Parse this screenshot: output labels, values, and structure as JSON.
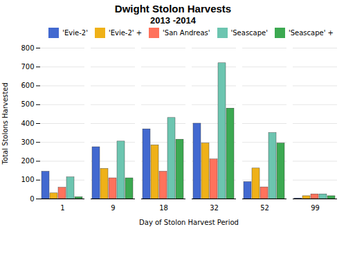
{
  "chart_data": {
    "type": "bar",
    "title": "Dwight Stolon Harvests",
    "subtitle": "2013 -2014",
    "xlabel": "Day of Stolon Harvest Period",
    "ylabel": "Total Stolons Harvested",
    "categories": [
      "1",
      "9",
      "18",
      "32",
      "52",
      "99"
    ],
    "series": [
      {
        "name": "'Evie-2'",
        "values": [
          145,
          275,
          370,
          400,
          90,
          3
        ]
      },
      {
        "name": "'Evie-2' +",
        "values": [
          30,
          160,
          285,
          295,
          162,
          15
        ]
      },
      {
        "name": "'San Andreas'",
        "values": [
          60,
          110,
          145,
          210,
          62,
          25
        ]
      },
      {
        "name": "'Seascape'",
        "values": [
          115,
          305,
          430,
          720,
          350,
          25
        ]
      },
      {
        "name": "'Seascape' +",
        "values": [
          10,
          110,
          315,
          480,
          295,
          15
        ]
      }
    ],
    "ylim": [
      0,
      800
    ],
    "yticks": [
      0,
      100,
      200,
      300,
      400,
      500,
      600,
      700,
      800
    ],
    "grid": true,
    "legend": "upper right"
  }
}
